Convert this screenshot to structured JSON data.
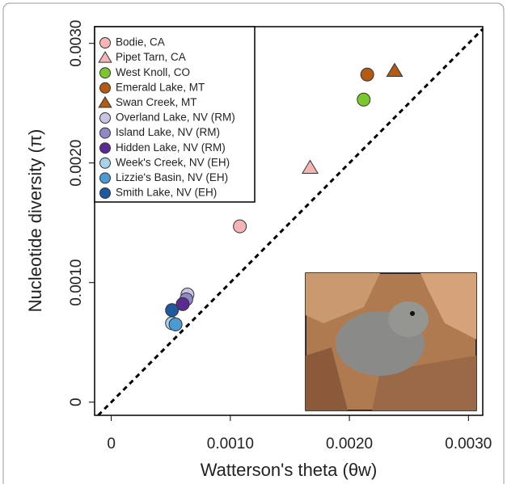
{
  "chart_data": {
    "type": "scatter",
    "x_label": "Watterson's theta (θw)",
    "y_label": "Nucleotide diversity (π)",
    "xlim": [
      -0.00014,
      0.00312
    ],
    "ylim": [
      -0.00011,
      0.00314
    ],
    "xticks": [
      0,
      {
        "value": 0.001,
        "label": "0.0010"
      },
      {
        "value": 0.002,
        "label": "0.0020"
      },
      {
        "value": 0.003,
        "label": "0.0030"
      }
    ],
    "yticks": [
      0,
      {
        "value": 0.001,
        "label": "0.0010"
      },
      {
        "value": 0.002,
        "label": "0.0020"
      },
      {
        "value": 0.003,
        "label": "0.0030"
      }
    ],
    "legend": "upper left",
    "series": [
      {
        "name": "Bodie, CA",
        "color": "#f7b4b4",
        "marker": "circle",
        "x": [
          0.00108
        ],
        "values": [
          0.00147
        ]
      },
      {
        "name": "Pipet Tarn, CA",
        "color": "#f7b4b4",
        "marker": "triangle",
        "x": [
          0.00167
        ],
        "values": [
          0.00196
        ]
      },
      {
        "name": "West Knoll, CO",
        "color": "#7cc62e",
        "marker": "circle",
        "x": [
          0.00212
        ],
        "values": [
          0.00253
        ]
      },
      {
        "name": "Emerald Lake, MT",
        "color": "#b35a14",
        "marker": "circle",
        "x": [
          0.00215
        ],
        "values": [
          0.00274
        ]
      },
      {
        "name": "Swan Creek, MT",
        "color": "#b35a14",
        "marker": "triangle",
        "x": [
          0.00238
        ],
        "values": [
          0.00277
        ]
      },
      {
        "name": "Overland Lake, NV (RM)",
        "color": "#c8c4e2",
        "marker": "circle",
        "x": [
          0.00064
        ],
        "values": [
          0.0009
        ]
      },
      {
        "name": "Island Lake, NV (RM)",
        "color": "#8f88c6",
        "marker": "circle",
        "x": [
          0.00063
        ],
        "values": [
          0.00086
        ]
      },
      {
        "name": "Hidden Lake, NV (RM)",
        "color": "#5b2b92",
        "marker": "circle",
        "x": [
          0.0006
        ],
        "values": [
          0.00082
        ]
      },
      {
        "name": "Week's Creek, NV (EH)",
        "color": "#aad1e8",
        "marker": "circle",
        "x": [
          0.00051
        ],
        "values": [
          0.00066
        ]
      },
      {
        "name": "Lizzie's Basin, NV (EH)",
        "color": "#4b9bd2",
        "marker": "circle",
        "x": [
          0.00054
        ],
        "values": [
          0.00065
        ]
      },
      {
        "name": "Smith Lake, NV (EH)",
        "color": "#1f5aa0",
        "marker": "circle",
        "x": [
          0.00051
        ],
        "values": [
          0.00077
        ]
      }
    ]
  }
}
